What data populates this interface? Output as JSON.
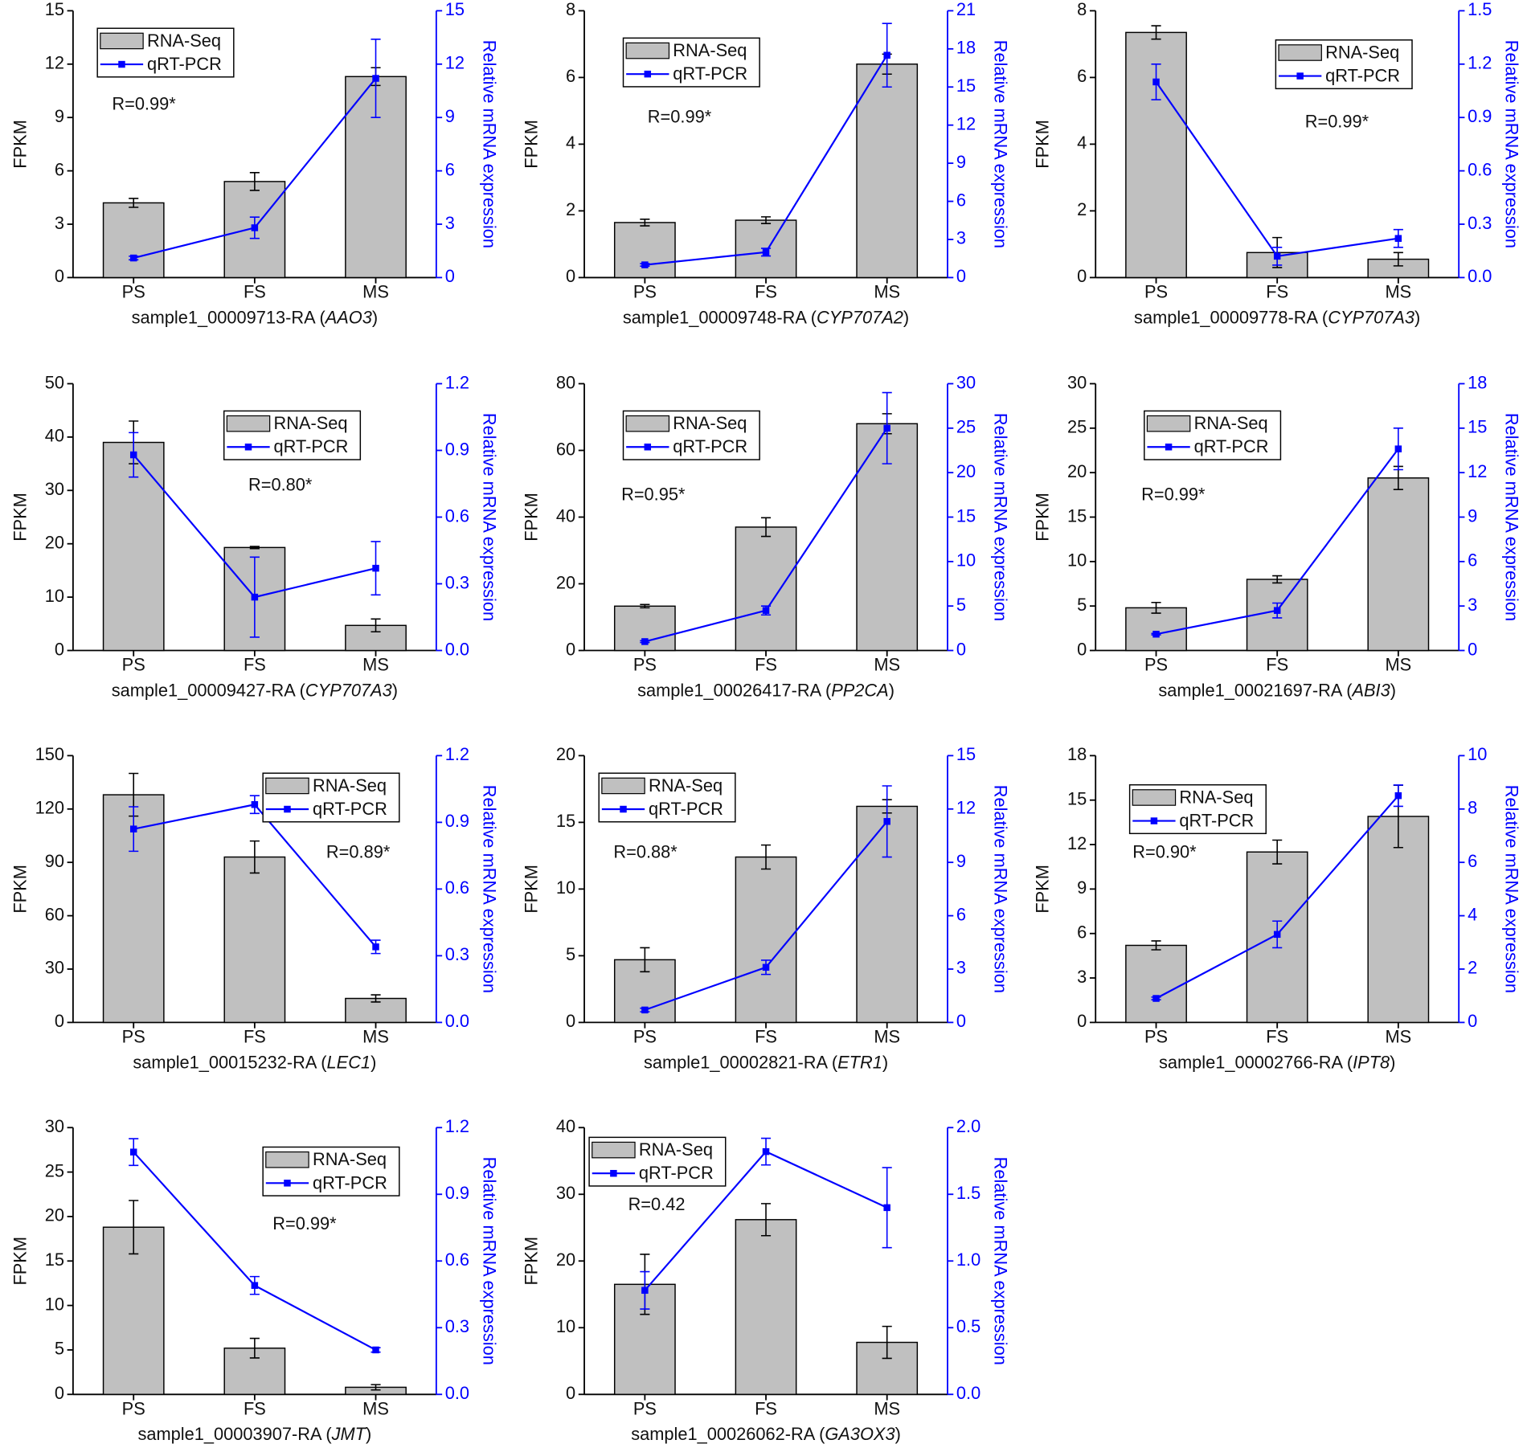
{
  "chart_data": [
    {
      "type": "bar_line",
      "xlabel_parts": [
        "sample1_00009713-RA (",
        "AAO3",
        ")"
      ],
      "ylabel": "FPKM",
      "y2label": "Relative mRNA expression",
      "annotation": "R=0.99*",
      "categories": [
        "PS",
        "FS",
        "MS"
      ],
      "series": [
        {
          "name": "RNA-Seq",
          "color": "#c0c0c0",
          "values": [
            4.2,
            5.4,
            11.3
          ],
          "errors": [
            0.25,
            0.5,
            0.5
          ]
        },
        {
          "name": "qRT-PCR",
          "color": "#0000ff",
          "axis": "y2",
          "values": [
            1.1,
            2.8,
            11.2
          ],
          "errors": [
            0.1,
            0.6,
            2.2
          ]
        }
      ],
      "ylim": [
        0,
        15
      ],
      "yticks": [
        0,
        3,
        6,
        9,
        12,
        15
      ],
      "y2lim": [
        0,
        15
      ],
      "y2ticks": [
        0,
        3,
        6,
        9,
        12,
        15
      ]
    },
    {
      "type": "bar_line",
      "xlabel_parts": [
        "sample1_00009748-RA (",
        "CYP707A2",
        ")"
      ],
      "ylabel": "FPKM",
      "y2label": "Relative mRNA expression",
      "annotation": "R=0.99*",
      "categories": [
        "PS",
        "FS",
        "MS"
      ],
      "series": [
        {
          "name": "RNA-Seq",
          "color": "#c0c0c0",
          "values": [
            1.65,
            1.72,
            6.4
          ],
          "errors": [
            0.1,
            0.1,
            0.3
          ]
        },
        {
          "name": "qRT-PCR",
          "color": "#0000ff",
          "axis": "y2",
          "values": [
            1.0,
            2.0,
            17.5
          ],
          "errors": [
            0.1,
            0.3,
            2.5
          ]
        }
      ],
      "ylim": [
        0,
        8
      ],
      "yticks": [
        0,
        2,
        4,
        6,
        8
      ],
      "y2lim": [
        0,
        21
      ],
      "y2ticks": [
        0,
        3,
        6,
        9,
        12,
        15,
        18,
        21
      ]
    },
    {
      "type": "bar_line",
      "xlabel_parts": [
        "sample1_00009778-RA (",
        "CYP707A3",
        ")"
      ],
      "ylabel": "FPKM",
      "y2label": "Relative mRNA expression",
      "annotation": "R=0.99*",
      "categories": [
        "PS",
        "FS",
        "MS"
      ],
      "series": [
        {
          "name": "RNA-Seq",
          "color": "#c0c0c0",
          "values": [
            7.35,
            0.75,
            0.55
          ],
          "errors": [
            0.2,
            0.45,
            0.2
          ]
        },
        {
          "name": "qRT-PCR",
          "color": "#0000ff",
          "axis": "y2",
          "values": [
            1.1,
            0.12,
            0.22
          ],
          "errors": [
            0.1,
            0.05,
            0.05
          ]
        }
      ],
      "ylim": [
        0,
        8
      ],
      "yticks": [
        0,
        2,
        4,
        6,
        8
      ],
      "y2lim": [
        0,
        1.5
      ],
      "y2ticks": [
        {
          "value": 0,
          "label": "0.0"
        },
        {
          "value": 0.3,
          "label": "0.3"
        },
        {
          "value": 0.6,
          "label": "0.6"
        },
        {
          "value": 0.9,
          "label": "0.9"
        },
        {
          "value": 1.2,
          "label": "1.2"
        },
        {
          "value": 1.5,
          "label": "1.5"
        }
      ]
    },
    {
      "type": "bar_line",
      "xlabel_parts": [
        "sample1_00009427-RA (",
        "CYP707A3",
        ")"
      ],
      "ylabel": "FPKM",
      "y2label": "Relative mRNA expression",
      "annotation": "R=0.80*",
      "categories": [
        "PS",
        "FS",
        "MS"
      ],
      "series": [
        {
          "name": "RNA-Seq",
          "color": "#c0c0c0",
          "values": [
            39,
            19.3,
            4.7
          ],
          "errors": [
            4,
            0.2,
            1.2
          ]
        },
        {
          "name": "qRT-PCR",
          "color": "#0000ff",
          "axis": "y2",
          "values": [
            0.88,
            0.24,
            0.37
          ],
          "errors": [
            0.1,
            0.18,
            0.12
          ]
        }
      ],
      "ylim": [
        0,
        50
      ],
      "yticks": [
        0,
        10,
        20,
        30,
        40,
        50
      ],
      "y2lim": [
        0,
        1.2
      ],
      "y2ticks": [
        {
          "value": 0,
          "label": "0.0"
        },
        {
          "value": 0.3,
          "label": "0.3"
        },
        {
          "value": 0.6,
          "label": "0.6"
        },
        {
          "value": 0.9,
          "label": "0.9"
        },
        {
          "value": 1.2,
          "label": "1.2"
        }
      ]
    },
    {
      "type": "bar_line",
      "xlabel_parts": [
        "sample1_00026417-RA (",
        "PP2CA",
        ")"
      ],
      "ylabel": "FPKM",
      "y2label": "Relative mRNA expression",
      "annotation": "R=0.95*",
      "categories": [
        "PS",
        "FS",
        "MS"
      ],
      "series": [
        {
          "name": "RNA-Seq",
          "color": "#c0c0c0",
          "values": [
            13.3,
            37,
            68
          ],
          "errors": [
            0.5,
            2.8,
            3
          ]
        },
        {
          "name": "qRT-PCR",
          "color": "#0000ff",
          "axis": "y2",
          "values": [
            1,
            4.5,
            25
          ],
          "errors": [
            0.1,
            0.5,
            4
          ]
        }
      ],
      "ylim": [
        0,
        80
      ],
      "yticks": [
        0,
        20,
        40,
        60,
        80
      ],
      "y2lim": [
        0,
        30
      ],
      "y2ticks": [
        0,
        5,
        10,
        15,
        20,
        25,
        30
      ]
    },
    {
      "type": "bar_line",
      "xlabel_parts": [
        "sample1_00021697-RA (",
        "ABI3",
        ")"
      ],
      "ylabel": "FPKM",
      "y2label": "Relative mRNA expression",
      "annotation": "R=0.99*",
      "categories": [
        "PS",
        "FS",
        "MS"
      ],
      "series": [
        {
          "name": "RNA-Seq",
          "color": "#c0c0c0",
          "values": [
            4.8,
            8,
            19.4
          ],
          "errors": [
            0.6,
            0.4,
            1.3
          ]
        },
        {
          "name": "qRT-PCR",
          "color": "#0000ff",
          "axis": "y2",
          "values": [
            1.1,
            2.7,
            13.6
          ],
          "errors": [
            0.05,
            0.5,
            1.4
          ]
        }
      ],
      "ylim": [
        0,
        30
      ],
      "yticks": [
        0,
        5,
        10,
        15,
        20,
        25,
        30
      ],
      "y2lim": [
        0,
        18
      ],
      "y2ticks": [
        0,
        3,
        6,
        9,
        12,
        15,
        18
      ]
    },
    {
      "type": "bar_line",
      "xlabel_parts": [
        "sample1_00015232-RA (",
        "LEC1",
        ")"
      ],
      "ylabel": "FPKM",
      "y2label": "Relative mRNA expression",
      "annotation": "R=0.89*",
      "categories": [
        "PS",
        "FS",
        "MS"
      ],
      "series": [
        {
          "name": "RNA-Seq",
          "color": "#c0c0c0",
          "values": [
            128,
            93,
            13.5
          ],
          "errors": [
            12,
            9,
            2
          ]
        },
        {
          "name": "qRT-PCR",
          "color": "#0000ff",
          "axis": "y2",
          "values": [
            0.87,
            0.98,
            0.34
          ],
          "errors": [
            0.1,
            0.04,
            0.03
          ]
        }
      ],
      "ylim": [
        0,
        150
      ],
      "yticks": [
        0,
        30,
        60,
        90,
        120,
        150
      ],
      "y2lim": [
        0,
        1.2
      ],
      "y2ticks": [
        {
          "value": 0,
          "label": "0.0"
        },
        {
          "value": 0.3,
          "label": "0.3"
        },
        {
          "value": 0.6,
          "label": "0.6"
        },
        {
          "value": 0.9,
          "label": "0.9"
        },
        {
          "value": 1.2,
          "label": "1.2"
        }
      ]
    },
    {
      "type": "bar_line",
      "xlabel_parts": [
        "sample1_00002821-RA (",
        "ETR1",
        ")"
      ],
      "ylabel": "FPKM",
      "y2label": "Relative mRNA expression",
      "annotation": "R=0.88*",
      "categories": [
        "PS",
        "FS",
        "MS"
      ],
      "series": [
        {
          "name": "RNA-Seq",
          "color": "#c0c0c0",
          "values": [
            4.7,
            12.4,
            16.2
          ],
          "errors": [
            0.9,
            0.9,
            0.5
          ]
        },
        {
          "name": "qRT-PCR",
          "color": "#0000ff",
          "axis": "y2",
          "values": [
            0.7,
            3.1,
            11.3
          ],
          "errors": [
            0.1,
            0.4,
            2
          ]
        }
      ],
      "ylim": [
        0,
        20
      ],
      "yticks": [
        0,
        5,
        10,
        15,
        20
      ],
      "y2lim": [
        0,
        15
      ],
      "y2ticks": [
        0,
        3,
        6,
        9,
        12,
        15
      ]
    },
    {
      "type": "bar_line",
      "xlabel_parts": [
        "sample1_00002766-RA (",
        "IPT8",
        ")"
      ],
      "ylabel": "FPKM",
      "y2label": "Relative mRNA expression",
      "annotation": "R=0.90*",
      "categories": [
        "PS",
        "FS",
        "MS"
      ],
      "series": [
        {
          "name": "RNA-Seq",
          "color": "#c0c0c0",
          "values": [
            5.2,
            11.5,
            13.9
          ],
          "errors": [
            0.3,
            0.8,
            2.1
          ]
        },
        {
          "name": "qRT-PCR",
          "color": "#0000ff",
          "axis": "y2",
          "values": [
            0.9,
            3.3,
            8.5
          ],
          "errors": [
            0.05,
            0.5,
            0.4
          ]
        }
      ],
      "ylim": [
        0,
        18
      ],
      "yticks": [
        0,
        3,
        6,
        9,
        12,
        15,
        18
      ],
      "y2lim": [
        0,
        10
      ],
      "y2ticks": [
        0,
        2,
        4,
        6,
        8,
        10
      ]
    },
    {
      "type": "bar_line",
      "xlabel_parts": [
        "sample1_00003907-RA (",
        "JMT",
        ")"
      ],
      "ylabel": "FPKM",
      "y2label": "Relative mRNA expression",
      "annotation": "R=0.99*",
      "categories": [
        "PS",
        "FS",
        "MS"
      ],
      "series": [
        {
          "name": "RNA-Seq",
          "color": "#c0c0c0",
          "values": [
            18.8,
            5.2,
            0.8
          ],
          "errors": [
            3,
            1.1,
            0.3
          ]
        },
        {
          "name": "qRT-PCR",
          "color": "#0000ff",
          "axis": "y2",
          "values": [
            1.09,
            0.49,
            0.2
          ],
          "errors": [
            0.06,
            0.04,
            0.01
          ]
        }
      ],
      "ylim": [
        0,
        30
      ],
      "yticks": [
        0,
        5,
        10,
        15,
        20,
        25,
        30
      ],
      "y2lim": [
        0,
        1.2
      ],
      "y2ticks": [
        {
          "value": 0,
          "label": "0.0"
        },
        {
          "value": 0.3,
          "label": "0.3"
        },
        {
          "value": 0.6,
          "label": "0.6"
        },
        {
          "value": 0.9,
          "label": "0.9"
        },
        {
          "value": 1.2,
          "label": "1.2"
        }
      ]
    },
    {
      "type": "bar_line",
      "xlabel_parts": [
        "sample1_00026062-RA (",
        "GA3OX3",
        ")"
      ],
      "ylabel": "FPKM",
      "y2label": "Relative mRNA expression",
      "annotation": "R=0.42",
      "categories": [
        "PS",
        "FS",
        "MS"
      ],
      "series": [
        {
          "name": "RNA-Seq",
          "color": "#c0c0c0",
          "values": [
            16.5,
            26.2,
            7.8
          ],
          "errors": [
            4.5,
            2.4,
            2.4
          ]
        },
        {
          "name": "qRT-PCR",
          "color": "#0000ff",
          "axis": "y2",
          "values": [
            0.78,
            1.82,
            1.4
          ],
          "errors": [
            0.14,
            0.1,
            0.3
          ]
        }
      ],
      "ylim": [
        0,
        40
      ],
      "yticks": [
        0,
        10,
        20,
        30,
        40
      ],
      "y2lim": [
        0,
        2
      ],
      "y2ticks": [
        {
          "value": 0,
          "label": "0.0"
        },
        {
          "value": 0.5,
          "label": "0.5"
        },
        {
          "value": 1,
          "label": "1.0"
        },
        {
          "value": 1.5,
          "label": "1.5"
        },
        {
          "value": 2,
          "label": "2.0"
        }
      ]
    }
  ]
}
